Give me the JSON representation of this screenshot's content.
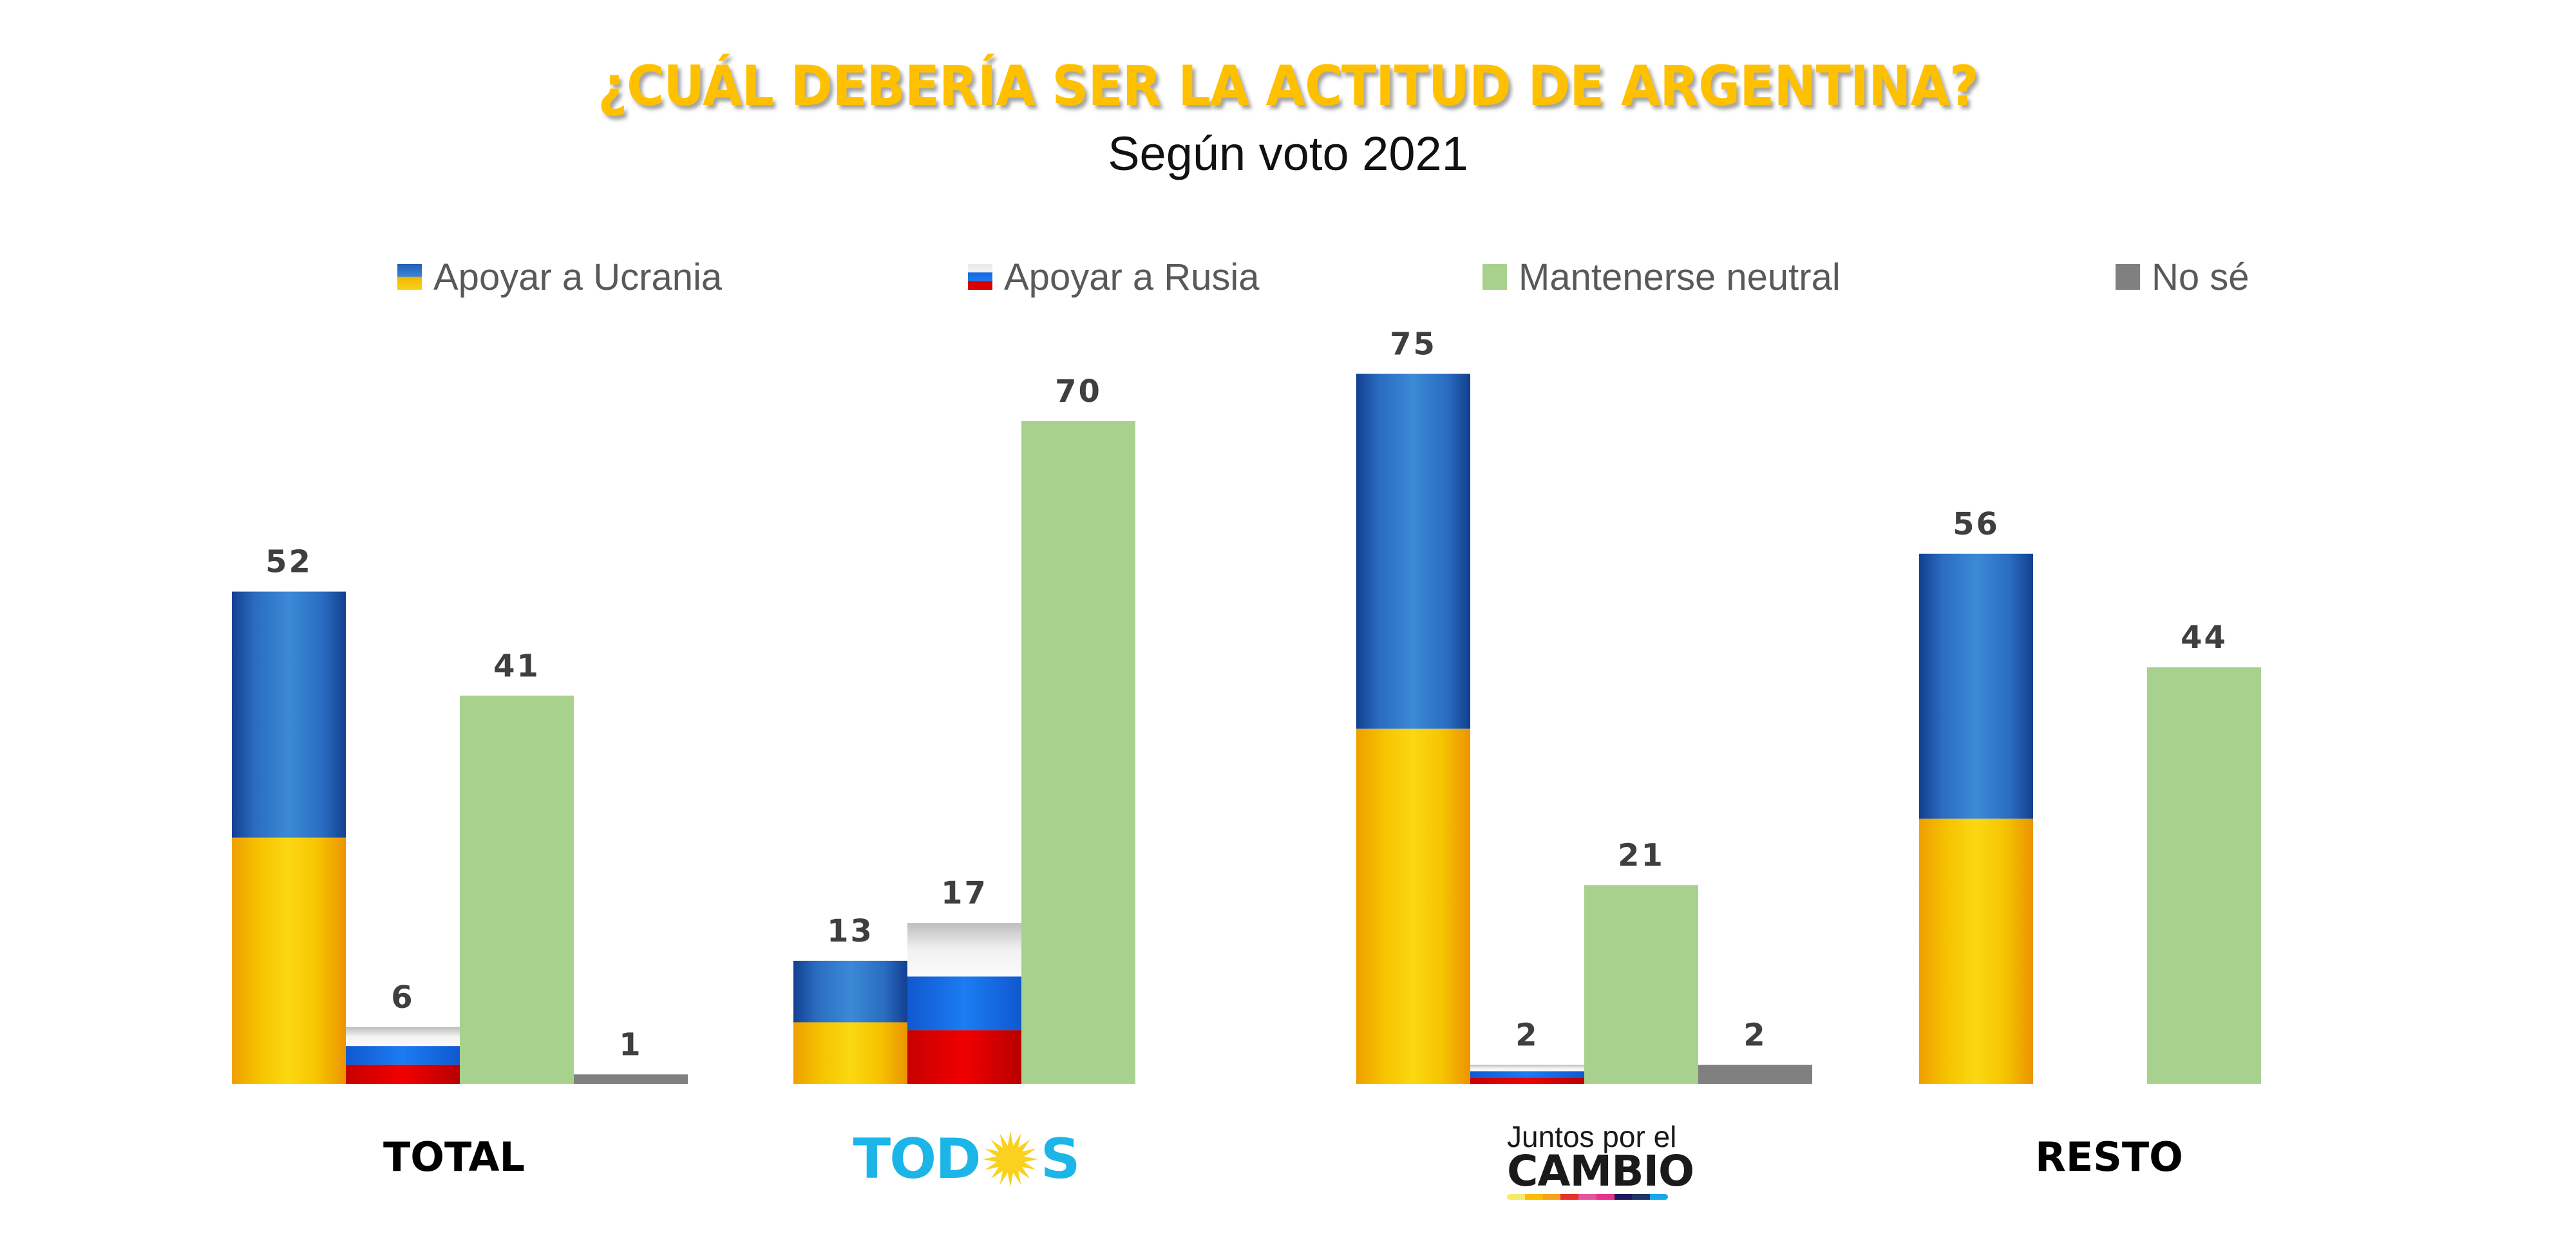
{
  "header": {
    "title": "¿CUÁL DEBERÍA SER LA ACTITUD DE ARGENTINA?",
    "subtitle": "Según voto 2021"
  },
  "legend": [
    {
      "label": "Apoyar a Ucrania",
      "icon": "ukraine-flag-swatch"
    },
    {
      "label": "Apoyar a Rusia",
      "icon": "russia-flag-swatch"
    },
    {
      "label": "Mantenerse neutral",
      "icon": "green-swatch",
      "color": "#A9D18E"
    },
    {
      "label": "No sé",
      "icon": "gray-swatch",
      "color": "#808080"
    }
  ],
  "groups": {
    "total": "TOTAL",
    "todos": {
      "left": "TOD",
      "right": "S",
      "sun_icon": "sun-icon"
    },
    "jxc": {
      "top": "Juntos por el",
      "bottom": "CAMBIO",
      "stripe_colors": [
        "#f6e96b",
        "#f9be00",
        "#f7a21b",
        "#e8312a",
        "#e6559a",
        "#e5338a",
        "#1b1760",
        "#1c3566",
        "#1aa7e8"
      ]
    },
    "resto": "RESTO"
  },
  "colors": {
    "title": "#FFC000",
    "neutral": "#A9D18E",
    "nose": "#808080",
    "ukraine_blue": "#2f78c8",
    "ukraine_yellow": "#f5c800",
    "russia_white": "#eeeeee",
    "russia_blue": "#1a6fe8",
    "russia_red": "#e00000",
    "todos_blue": "#1CB5E8",
    "value_text": "#3F3F3F"
  },
  "chart_data": {
    "type": "bar",
    "title": "¿CUÁL DEBERÍA SER LA ACTITUD DE ARGENTINA?",
    "subtitle": "Según voto 2021",
    "xlabel": "",
    "ylabel": "",
    "categories": [
      "TOTAL",
      "TODOS",
      "Juntos por el CAMBIO",
      "RESTO"
    ],
    "series": [
      {
        "name": "Apoyar a Ucrania",
        "values": [
          52,
          13,
          75,
          56
        ]
      },
      {
        "name": "Apoyar a Rusia",
        "values": [
          6,
          17,
          2,
          null
        ]
      },
      {
        "name": "Mantenerse neutral",
        "values": [
          41,
          70,
          21,
          44
        ]
      },
      {
        "name": "No sé",
        "values": [
          1,
          null,
          2,
          null
        ]
      }
    ],
    "ylim": [
      0,
      80
    ],
    "grid": false,
    "legend_position": "top",
    "value_labels": true
  }
}
